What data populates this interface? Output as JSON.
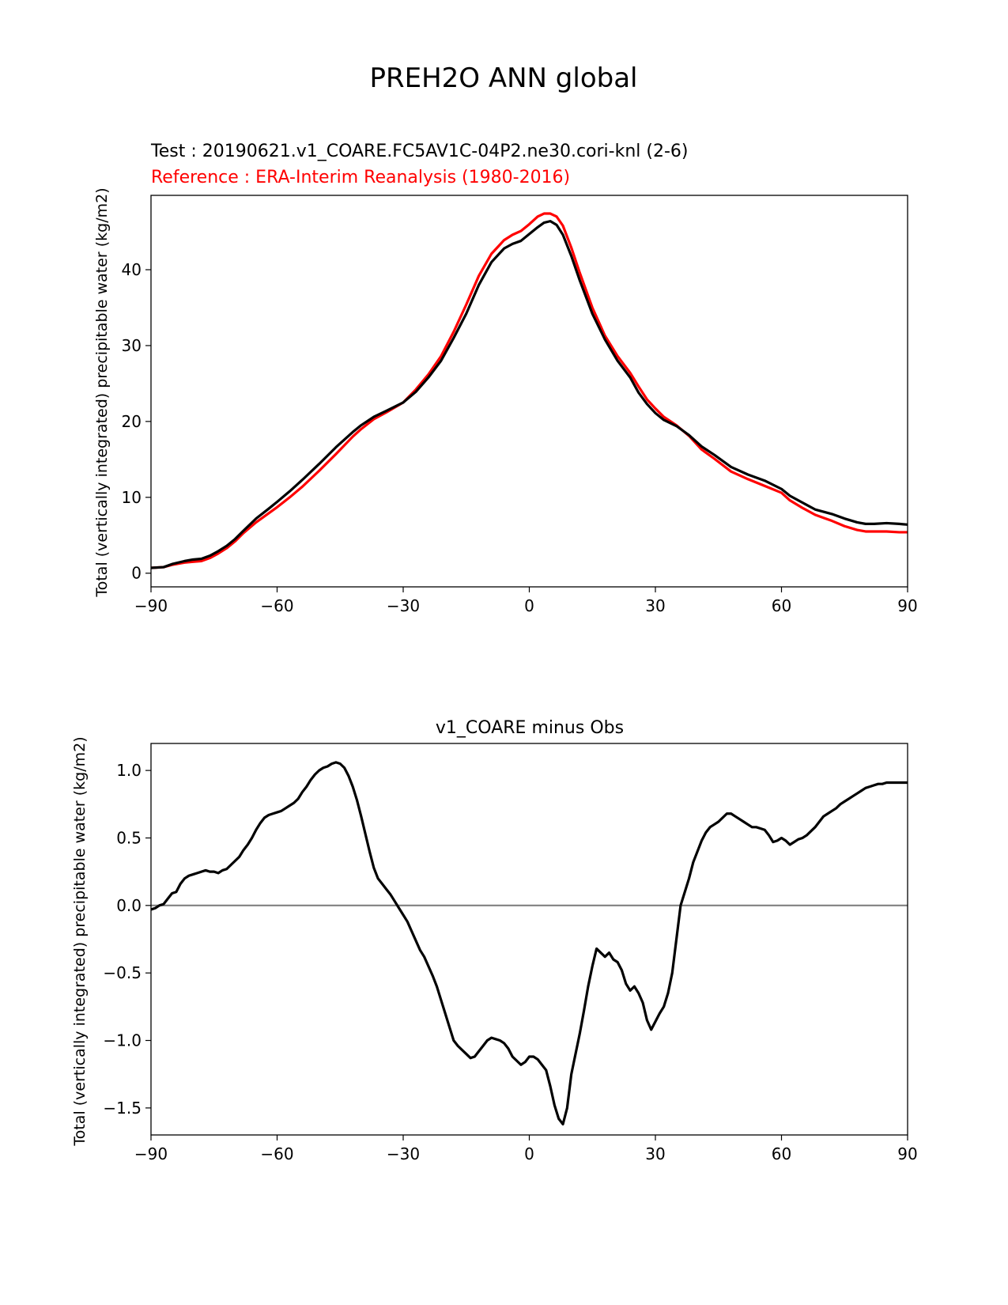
{
  "figure_title": "PREH2O ANN global",
  "colors": {
    "test": "#000000",
    "reference": "#ff0000",
    "zero_line": "#808080"
  },
  "chart_data": [
    {
      "type": "line",
      "test_label": "Test : 20190621.v1_COARE.FC5AV1C-04P2.ne30.cori-knl (2-6)",
      "reference_label": "Reference : ERA-Interim Reanalysis (1980-2016)",
      "xlabel": "",
      "ylabel": "Total (vertically integrated) precipitable water (kg/m2)",
      "xlim": [
        -90,
        90
      ],
      "ylim": [
        -1.8,
        49.8
      ],
      "xticks": [
        -90,
        -60,
        -30,
        0,
        30,
        60,
        90
      ],
      "xtick_labels": [
        "−90",
        "−60",
        "−30",
        "0",
        "30",
        "60",
        "90"
      ],
      "yticks": [
        0,
        10,
        20,
        30,
        40
      ],
      "ytick_labels": [
        "0",
        "10",
        "20",
        "30",
        "40"
      ],
      "series": [
        {
          "name": "test",
          "x": [
            -90,
            -87,
            -85,
            -82,
            -80,
            -78,
            -76,
            -74,
            -72,
            -70,
            -68,
            -65,
            -62,
            -60,
            -57,
            -54,
            -50,
            -46,
            -42,
            -40,
            -37,
            -34,
            -30,
            -27,
            -24,
            -21,
            -18,
            -15,
            -12,
            -9,
            -6,
            -4,
            -2,
            0,
            2,
            3.5,
            5,
            6.5,
            8,
            10,
            12,
            15,
            18,
            21,
            24,
            26,
            28,
            30,
            32,
            35,
            38,
            41,
            44,
            48,
            52,
            56,
            60,
            62,
            65,
            68,
            70,
            72,
            75,
            78,
            80,
            82,
            85,
            88,
            90
          ],
          "y": [
            0.7,
            0.8,
            1.2,
            1.6,
            1.8,
            1.9,
            2.3,
            2.9,
            3.6,
            4.5,
            5.6,
            7.2,
            8.5,
            9.4,
            10.8,
            12.3,
            14.4,
            16.6,
            18.6,
            19.5,
            20.6,
            21.4,
            22.5,
            23.9,
            25.8,
            28.0,
            31.0,
            34.2,
            38.0,
            41.0,
            42.8,
            43.4,
            43.8,
            44.7,
            45.6,
            46.2,
            46.4,
            45.9,
            44.6,
            41.8,
            38.6,
            34.2,
            30.8,
            28.0,
            25.8,
            23.8,
            22.3,
            21.1,
            20.2,
            19.4,
            18.2,
            16.7,
            15.6,
            14.0,
            13.0,
            12.2,
            11.1,
            10.2,
            9.3,
            8.4,
            8.1,
            7.8,
            7.2,
            6.7,
            6.5,
            6.5,
            6.6,
            6.5,
            6.4
          ]
        },
        {
          "name": "reference",
          "x": [
            -90,
            -87,
            -85,
            -82,
            -80,
            -78,
            -76,
            -74,
            -72,
            -70,
            -68,
            -65,
            -62,
            -60,
            -57,
            -54,
            -50,
            -46,
            -42,
            -40,
            -37,
            -34,
            -30,
            -27,
            -24,
            -21,
            -18,
            -15,
            -12,
            -9,
            -6,
            -4,
            -2,
            0,
            2,
            3.5,
            5,
            6.5,
            8,
            10,
            12,
            15,
            18,
            21,
            24,
            26,
            28,
            30,
            32,
            35,
            38,
            41,
            44,
            48,
            52,
            56,
            60,
            62,
            65,
            68,
            70,
            72,
            75,
            78,
            80,
            82,
            85,
            88,
            90
          ],
          "y": [
            0.7,
            0.8,
            1.1,
            1.4,
            1.5,
            1.6,
            2.0,
            2.6,
            3.3,
            4.2,
            5.3,
            6.7,
            7.9,
            8.7,
            10.0,
            11.4,
            13.5,
            15.7,
            18.0,
            19.0,
            20.3,
            21.2,
            22.5,
            24.2,
            26.2,
            28.6,
            31.8,
            35.4,
            39.2,
            42.1,
            43.9,
            44.6,
            45.1,
            46.0,
            47.0,
            47.4,
            47.4,
            47.0,
            45.8,
            42.9,
            39.6,
            35.0,
            31.3,
            28.6,
            26.4,
            24.6,
            22.9,
            21.7,
            20.6,
            19.5,
            18.1,
            16.3,
            15.1,
            13.4,
            12.4,
            11.5,
            10.6,
            9.6,
            8.6,
            7.7,
            7.3,
            6.9,
            6.2,
            5.7,
            5.5,
            5.5,
            5.5,
            5.4,
            5.4
          ]
        }
      ]
    },
    {
      "type": "line",
      "title": "v1_COARE minus Obs",
      "xlabel": "",
      "ylabel": "Total (vertically integrated) precipitable water (kg/m2)",
      "xlim": [
        -90,
        90
      ],
      "ylim": [
        -1.7,
        1.2
      ],
      "xticks": [
        -90,
        -60,
        -30,
        0,
        30,
        60,
        90
      ],
      "xtick_labels": [
        "−90",
        "−60",
        "−30",
        "0",
        "30",
        "60",
        "90"
      ],
      "yticks": [
        1.0,
        0.5,
        0.0,
        -0.5,
        -1.0,
        -1.5
      ],
      "ytick_labels": [
        "1.0",
        "0.5",
        "0.0",
        "−0.5",
        "−1.0",
        "−1.5"
      ],
      "zero_line": 0.0,
      "series": [
        {
          "name": "difference",
          "x": [
            -90,
            -89,
            -88,
            -87,
            -86,
            -85,
            -84,
            -83,
            -82,
            -81,
            -80,
            -79,
            -78,
            -77,
            -76,
            -75,
            -74,
            -73,
            -72,
            -71,
            -70,
            -69,
            -68,
            -67,
            -66,
            -65,
            -64,
            -63,
            -62,
            -61,
            -60,
            -59,
            -58,
            -57,
            -56,
            -55,
            -54,
            -53,
            -52,
            -51,
            -50,
            -49,
            -48,
            -47,
            -46,
            -45,
            -44,
            -43,
            -42,
            -41,
            -40,
            -39,
            -38,
            -37,
            -36,
            -35,
            -34,
            -33,
            -32,
            -31,
            -30,
            -29,
            -28,
            -27,
            -26,
            -25,
            -24,
            -23,
            -22,
            -21,
            -20,
            -19,
            -18,
            -17,
            -16,
            -15,
            -14,
            -13,
            -12,
            -11,
            -10,
            -9,
            -8,
            -7,
            -6,
            -5,
            -4,
            -3,
            -2,
            -1,
            0,
            1,
            2,
            3,
            4,
            5,
            6,
            7,
            8,
            9,
            10,
            11,
            12,
            13,
            14,
            15,
            16,
            17,
            18,
            19,
            20,
            21,
            22,
            23,
            24,
            25,
            26,
            27,
            28,
            29,
            30,
            31,
            32,
            33,
            34,
            35,
            36,
            37,
            38,
            39,
            40,
            41,
            42,
            43,
            44,
            45,
            46,
            47,
            48,
            49,
            50,
            51,
            52,
            53,
            54,
            55,
            56,
            57,
            58,
            59,
            60,
            61,
            62,
            63,
            64,
            65,
            66,
            67,
            68,
            69,
            70,
            71,
            72,
            73,
            74,
            75,
            76,
            77,
            78,
            79,
            80,
            81,
            82,
            83,
            84,
            85,
            86,
            87,
            88,
            89,
            90
          ],
          "y": [
            -0.03,
            -0.02,
            0.0,
            0.01,
            0.05,
            0.09,
            0.1,
            0.16,
            0.2,
            0.22,
            0.23,
            0.24,
            0.25,
            0.26,
            0.25,
            0.25,
            0.24,
            0.26,
            0.27,
            0.3,
            0.33,
            0.36,
            0.41,
            0.45,
            0.5,
            0.56,
            0.61,
            0.65,
            0.67,
            0.68,
            0.69,
            0.7,
            0.72,
            0.74,
            0.76,
            0.79,
            0.84,
            0.88,
            0.93,
            0.97,
            1.0,
            1.02,
            1.03,
            1.05,
            1.06,
            1.05,
            1.02,
            0.96,
            0.88,
            0.78,
            0.66,
            0.53,
            0.4,
            0.28,
            0.2,
            0.16,
            0.12,
            0.08,
            0.03,
            -0.02,
            -0.07,
            -0.12,
            -0.19,
            -0.26,
            -0.33,
            -0.38,
            -0.45,
            -0.52,
            -0.6,
            -0.7,
            -0.8,
            -0.9,
            -1.0,
            -1.04,
            -1.07,
            -1.1,
            -1.13,
            -1.12,
            -1.08,
            -1.04,
            -1.0,
            -0.98,
            -0.99,
            -1.0,
            -1.02,
            -1.06,
            -1.12,
            -1.15,
            -1.18,
            -1.16,
            -1.12,
            -1.12,
            -1.14,
            -1.18,
            -1.22,
            -1.34,
            -1.48,
            -1.58,
            -1.62,
            -1.5,
            -1.25,
            -1.1,
            -0.95,
            -0.78,
            -0.6,
            -0.45,
            -0.32,
            -0.35,
            -0.38,
            -0.35,
            -0.4,
            -0.42,
            -0.48,
            -0.58,
            -0.63,
            -0.6,
            -0.65,
            -0.72,
            -0.85,
            -0.92,
            -0.86,
            -0.8,
            -0.75,
            -0.65,
            -0.5,
            -0.25,
            0.0,
            0.1,
            0.2,
            0.32,
            0.4,
            0.48,
            0.54,
            0.58,
            0.6,
            0.62,
            0.65,
            0.68,
            0.68,
            0.66,
            0.64,
            0.62,
            0.6,
            0.58,
            0.58,
            0.57,
            0.56,
            0.52,
            0.47,
            0.48,
            0.5,
            0.48,
            0.45,
            0.47,
            0.49,
            0.5,
            0.52,
            0.55,
            0.58,
            0.62,
            0.66,
            0.68,
            0.7,
            0.72,
            0.75,
            0.77,
            0.79,
            0.81,
            0.83,
            0.85,
            0.87,
            0.88,
            0.89,
            0.9,
            0.9,
            0.91,
            0.91,
            0.91,
            0.91,
            0.91,
            0.91
          ]
        }
      ]
    }
  ]
}
